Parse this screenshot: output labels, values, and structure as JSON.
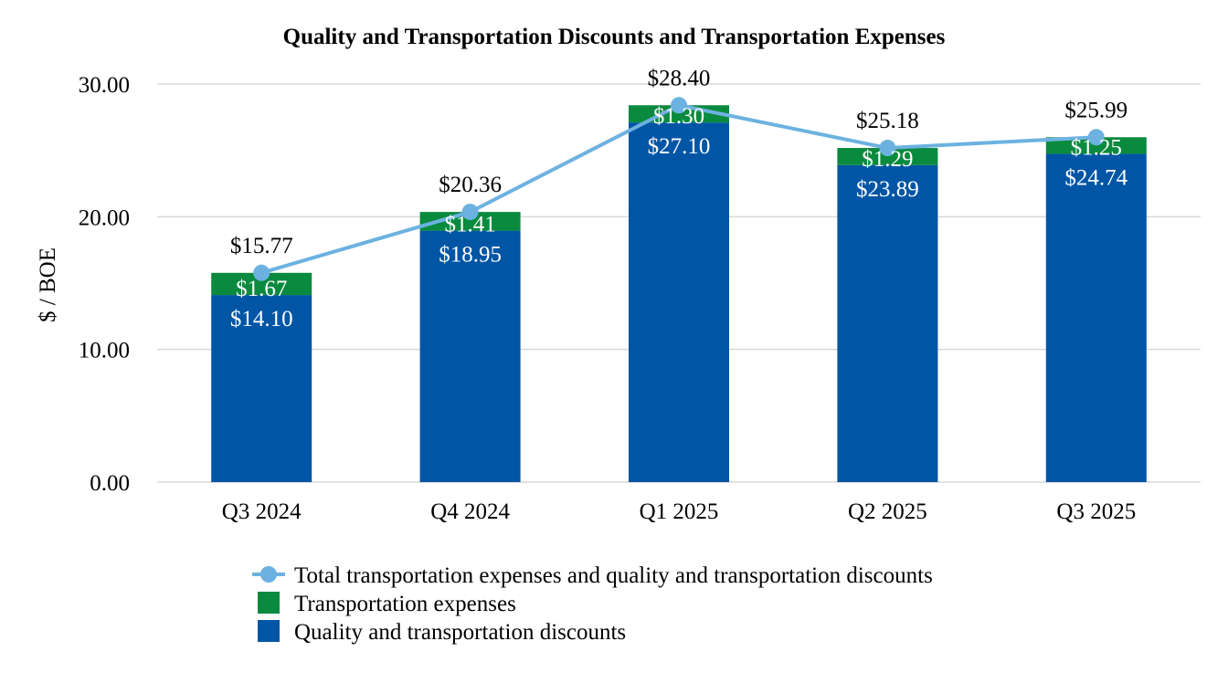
{
  "chart_data": {
    "type": "bar",
    "stacked": true,
    "title": "Quality and Transportation Discounts and Transportation Expenses",
    "xlabel": "",
    "ylabel": "$ / BOE",
    "ylim": [
      0,
      30
    ],
    "yticks": [
      "0.00",
      "10.00",
      "20.00",
      "30.00"
    ],
    "grid": true,
    "categories": [
      "Q3 2024",
      "Q4 2024",
      "Q1 2025",
      "Q2 2025",
      "Q3 2025"
    ],
    "series": [
      {
        "name": "Quality and transportation discounts",
        "kind": "bar",
        "color": "#0055A5",
        "values": [
          14.1,
          18.95,
          27.1,
          23.89,
          24.74
        ],
        "labels": [
          "$14.10",
          "$18.95",
          "$27.10",
          "$23.89",
          "$24.74"
        ]
      },
      {
        "name": "Transportation expenses",
        "kind": "bar",
        "color": "#0A8A3E",
        "values": [
          1.67,
          1.41,
          1.3,
          1.29,
          1.25
        ],
        "labels": [
          "$1.67",
          "$1.41",
          "$1.30",
          "$1.29",
          "$1.25"
        ]
      },
      {
        "name": "Total transportation expenses and quality and transportation discounts",
        "kind": "line",
        "color": "#6CB2E0",
        "values": [
          15.77,
          20.36,
          28.4,
          25.18,
          25.99
        ],
        "labels": [
          "$15.77",
          "$20.36",
          "$28.40",
          "$25.18",
          "$25.99"
        ]
      }
    ],
    "legend_position": "bottom-center",
    "legend_order": [
      2,
      1,
      0
    ]
  }
}
